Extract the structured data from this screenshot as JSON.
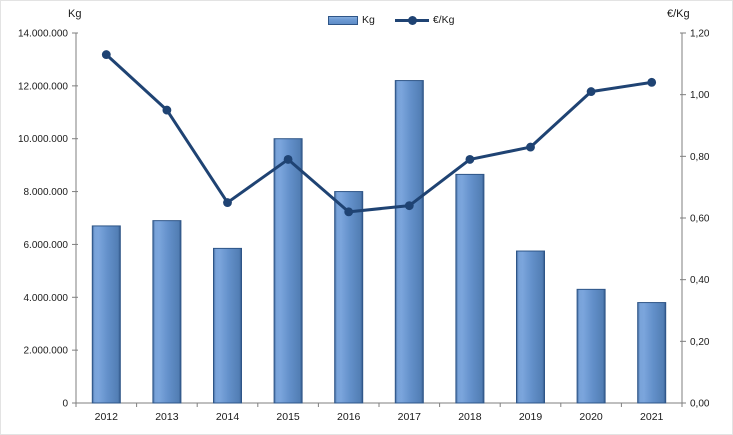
{
  "chart_data": {
    "type": "combo",
    "title": "",
    "categories": [
      "2012",
      "2013",
      "2014",
      "2015",
      "2016",
      "2017",
      "2018",
      "2019",
      "2020",
      "2021"
    ],
    "series": [
      {
        "name": "Kg",
        "type": "bar",
        "axis": "left",
        "color": "#6693CC",
        "border_color": "#2E5587",
        "values": [
          6700000,
          6900000,
          5850000,
          10000000,
          8000000,
          12200000,
          8650000,
          5750000,
          4300000,
          3800000
        ]
      },
      {
        "name": "€/Kg",
        "type": "line",
        "axis": "right",
        "color": "#1F4373",
        "values": [
          1.13,
          0.95,
          0.65,
          0.79,
          0.62,
          0.64,
          0.79,
          0.83,
          1.01,
          1.04
        ]
      }
    ],
    "left_axis": {
      "label": "Kg",
      "min": 0,
      "max": 14000000,
      "step": 2000000,
      "tick_labels": [
        "0",
        "2.000.000",
        "4.000.000",
        "6.000.000",
        "8.000.000",
        "10.000.000",
        "12.000.000",
        "14.000.000"
      ]
    },
    "right_axis": {
      "label": "€/Kg",
      "min": 0,
      "max": 1.2,
      "step": 0.2,
      "tick_labels": [
        "0,00",
        "0,20",
        "0,40",
        "0,60",
        "0,80",
        "1,00",
        "1,20"
      ]
    },
    "legend_position": "top",
    "grid": false,
    "colors": {
      "axis_line": "#7F7F7F",
      "text": "#1a1a1a",
      "background": "#ffffff"
    }
  }
}
